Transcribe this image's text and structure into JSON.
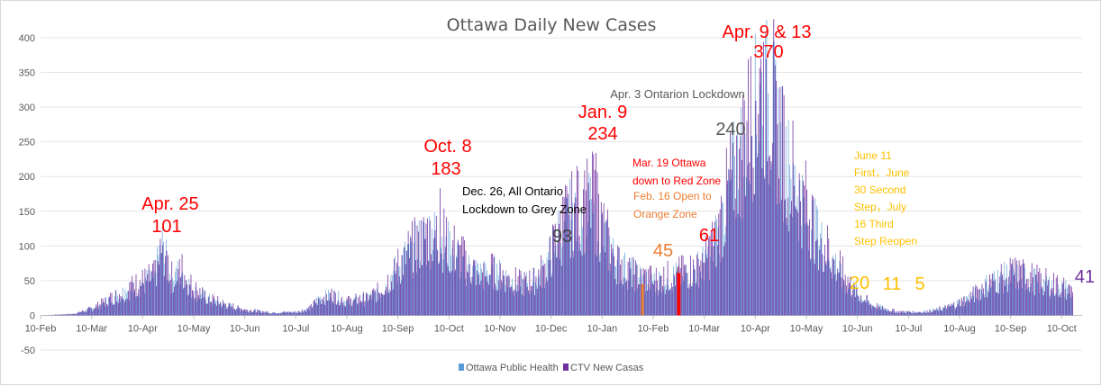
{
  "chart_data": {
    "type": "bar",
    "title": "Ottawa Daily New Cases",
    "xlabel": "",
    "ylabel": "",
    "ylim": [
      -50,
      400
    ],
    "y_ticks": [
      -50,
      0,
      50,
      100,
      150,
      200,
      250,
      300,
      350,
      400
    ],
    "x_tick_labels": [
      "10-Feb",
      "10-Mar",
      "10-Apr",
      "10-May",
      "10-Jun",
      "10-Jul",
      "10-Aug",
      "10-Sep",
      "10-Oct",
      "10-Nov",
      "10-Dec",
      "10-Jan",
      "10-Feb",
      "10-Mar",
      "10-Apr",
      "10-May",
      "10-Jun",
      "10-Jul",
      "10-Aug",
      "10-Sep",
      "10-Oct"
    ],
    "grid": true,
    "legend_position": "bottom",
    "series": [
      {
        "name": "Ottawa Public Health",
        "color": "#5b9bd5"
      },
      {
        "name": "CTV New Casas",
        "color": "#7030a0"
      }
    ],
    "approx_daily_profile": {
      "description_points_day_value": [
        [
          0,
          0
        ],
        [
          25,
          2
        ],
        [
          40,
          10
        ],
        [
          55,
          25
        ],
        [
          65,
          35
        ],
        [
          75,
          45
        ],
        [
          88,
          55
        ],
        [
          95,
          101
        ],
        [
          102,
          55
        ],
        [
          110,
          65
        ],
        [
          118,
          40
        ],
        [
          130,
          25
        ],
        [
          145,
          15
        ],
        [
          160,
          8
        ],
        [
          180,
          4
        ],
        [
          200,
          5
        ],
        [
          210,
          10
        ],
        [
          218,
          25
        ],
        [
          228,
          30
        ],
        [
          240,
          20
        ],
        [
          255,
          25
        ],
        [
          265,
          35
        ],
        [
          275,
          60
        ],
        [
          285,
          85
        ],
        [
          295,
          105
        ],
        [
          305,
          120
        ],
        [
          315,
          110
        ],
        [
          325,
          90
        ],
        [
          335,
          70
        ],
        [
          345,
          60
        ],
        [
          355,
          65
        ],
        [
          365,
          55
        ],
        [
          375,
          45
        ],
        [
          385,
          50
        ],
        [
          395,
          70
        ],
        [
          405,
          120
        ],
        [
          415,
          150
        ],
        [
          425,
          155
        ],
        [
          432,
          165
        ],
        [
          440,
          120
        ],
        [
          450,
          80
        ],
        [
          460,
          65
        ],
        [
          470,
          55
        ],
        [
          480,
          50
        ],
        [
          490,
          55
        ],
        [
          500,
          60
        ],
        [
          510,
          65
        ],
        [
          520,
          80
        ],
        [
          530,
          120
        ],
        [
          540,
          200
        ],
        [
          550,
          250
        ],
        [
          558,
          300
        ],
        [
          565,
          330
        ],
        [
          572,
          310
        ],
        [
          580,
          250
        ],
        [
          590,
          190
        ],
        [
          600,
          150
        ],
        [
          610,
          110
        ],
        [
          620,
          80
        ],
        [
          630,
          50
        ],
        [
          640,
          30
        ],
        [
          650,
          15
        ],
        [
          660,
          10
        ],
        [
          670,
          5
        ],
        [
          690,
          5
        ],
        [
          700,
          8
        ],
        [
          710,
          12
        ],
        [
          720,
          20
        ],
        [
          730,
          30
        ],
        [
          740,
          45
        ],
        [
          750,
          55
        ],
        [
          760,
          60
        ],
        [
          770,
          58
        ],
        [
          780,
          50
        ],
        [
          790,
          45
        ],
        [
          800,
          40
        ],
        [
          808,
          35
        ]
      ]
    },
    "spikes": [
      {
        "day": 95,
        "value": 101
      },
      {
        "day": 312,
        "value": 183
      },
      {
        "day": 422,
        "value": 93
      },
      {
        "day": 434,
        "value": 234
      },
      {
        "day": 470,
        "value": 45
      },
      {
        "day": 546,
        "value": 240
      },
      {
        "day": 563,
        "value": 370
      },
      {
        "day": 567,
        "value": 370
      }
    ]
  },
  "annotations": [
    {
      "id": "apr25-label",
      "text": "Apr. 25",
      "color": "#ff0000"
    },
    {
      "id": "apr25-value",
      "text": "101",
      "color": "#ff0000"
    },
    {
      "id": "oct8-label",
      "text": "Oct. 8",
      "color": "#ff0000"
    },
    {
      "id": "oct8-value",
      "text": "183",
      "color": "#ff0000"
    },
    {
      "id": "dec26-line1",
      "text": "Dec. 26, All Ontario",
      "color": "#000000"
    },
    {
      "id": "dec26-line2",
      "text": "Lockdown to Grey Zone",
      "color": "#000000"
    },
    {
      "id": "dec-value",
      "text": "93",
      "color": "#404040"
    },
    {
      "id": "jan9-label",
      "text": "Jan. 9",
      "color": "#ff0000"
    },
    {
      "id": "jan9-value",
      "text": "234",
      "color": "#ff0000"
    },
    {
      "id": "mar19-line1",
      "text": "Mar. 19 Ottawa",
      "color": "#ff0000"
    },
    {
      "id": "mar19-line2",
      "text": "down to Red Zone",
      "color": "#ff0000"
    },
    {
      "id": "feb16-line1",
      "text": "Feb. 16 Open to",
      "color": "#ed7d31"
    },
    {
      "id": "feb16-line2",
      "text": "Orange Zone",
      "color": "#ed7d31"
    },
    {
      "id": "feb-value",
      "text": "45",
      "color": "#ed7d31"
    },
    {
      "id": "mar-value",
      "text": "61",
      "color": "#ff0000"
    },
    {
      "id": "apr3-label",
      "text": "Apr. 3 Ontarion Lockdown",
      "color": "#595959"
    },
    {
      "id": "apr3-value",
      "text": "240",
      "color": "#595959"
    },
    {
      "id": "apr913-label",
      "text": "Apr. 9 & 13",
      "color": "#ff0000"
    },
    {
      "id": "apr913-value",
      "text": "370",
      "color": "#ff0000"
    },
    {
      "id": "june-line1",
      "text": "June 11",
      "color": "#ffc000"
    },
    {
      "id": "june-line2",
      "text": "First，June",
      "color": "#ffc000"
    },
    {
      "id": "june-line3",
      "text": "30 Second",
      "color": "#ffc000"
    },
    {
      "id": "june-line4",
      "text": "Step，July",
      "color": "#ffc000"
    },
    {
      "id": "june-line5",
      "text": "16 Third",
      "color": "#ffc000"
    },
    {
      "id": "june-line6",
      "text": "Step Reopen",
      "color": "#ffc000"
    },
    {
      "id": "jun-value",
      "text": "20",
      "color": "#ffc000"
    },
    {
      "id": "jul-value",
      "text": "11",
      "color": "#ffc000"
    },
    {
      "id": "jul2-value",
      "text": "5",
      "color": "#ffc000"
    },
    {
      "id": "oct-value",
      "text": "41",
      "color": "#7030a0"
    }
  ]
}
